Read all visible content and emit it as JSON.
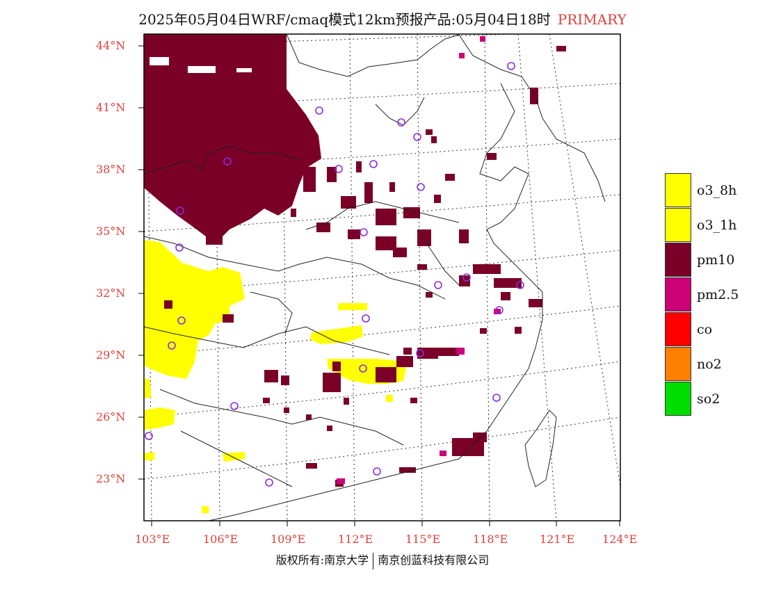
{
  "title": {
    "main": "2025年05月04日WRF/cmaq模式12km预报产品:05月04日18时",
    "tag": "PRIMARY"
  },
  "map": {
    "lat_labels": [
      "44°N",
      "41°N",
      "38°N",
      "35°N",
      "32°N",
      "29°N",
      "26°N",
      "23°N"
    ],
    "lon_labels": [
      "103°E",
      "106°E",
      "109°E",
      "112°E",
      "115°E",
      "118°E",
      "121°E",
      "124°E"
    ],
    "colors": {
      "pm10": "#7a0028",
      "o3": "#ffff00",
      "pm25": "#cc0077",
      "station": "#8a2be2"
    }
  },
  "legend": {
    "items": [
      {
        "label": "o3_8h",
        "color": "#ffff00"
      },
      {
        "label": "o3_1h",
        "color": "#ffff00"
      },
      {
        "label": "pm10",
        "color": "#7a0028"
      },
      {
        "label": "pm2.5",
        "color": "#cc0077"
      },
      {
        "label": "co",
        "color": "#ff0000"
      },
      {
        "label": "no2",
        "color": "#ff7f00"
      },
      {
        "label": "so2",
        "color": "#00dd00"
      }
    ]
  },
  "footer": {
    "left": "版权所有:南京大学",
    "right": "南京创蓝科技有限公司"
  }
}
